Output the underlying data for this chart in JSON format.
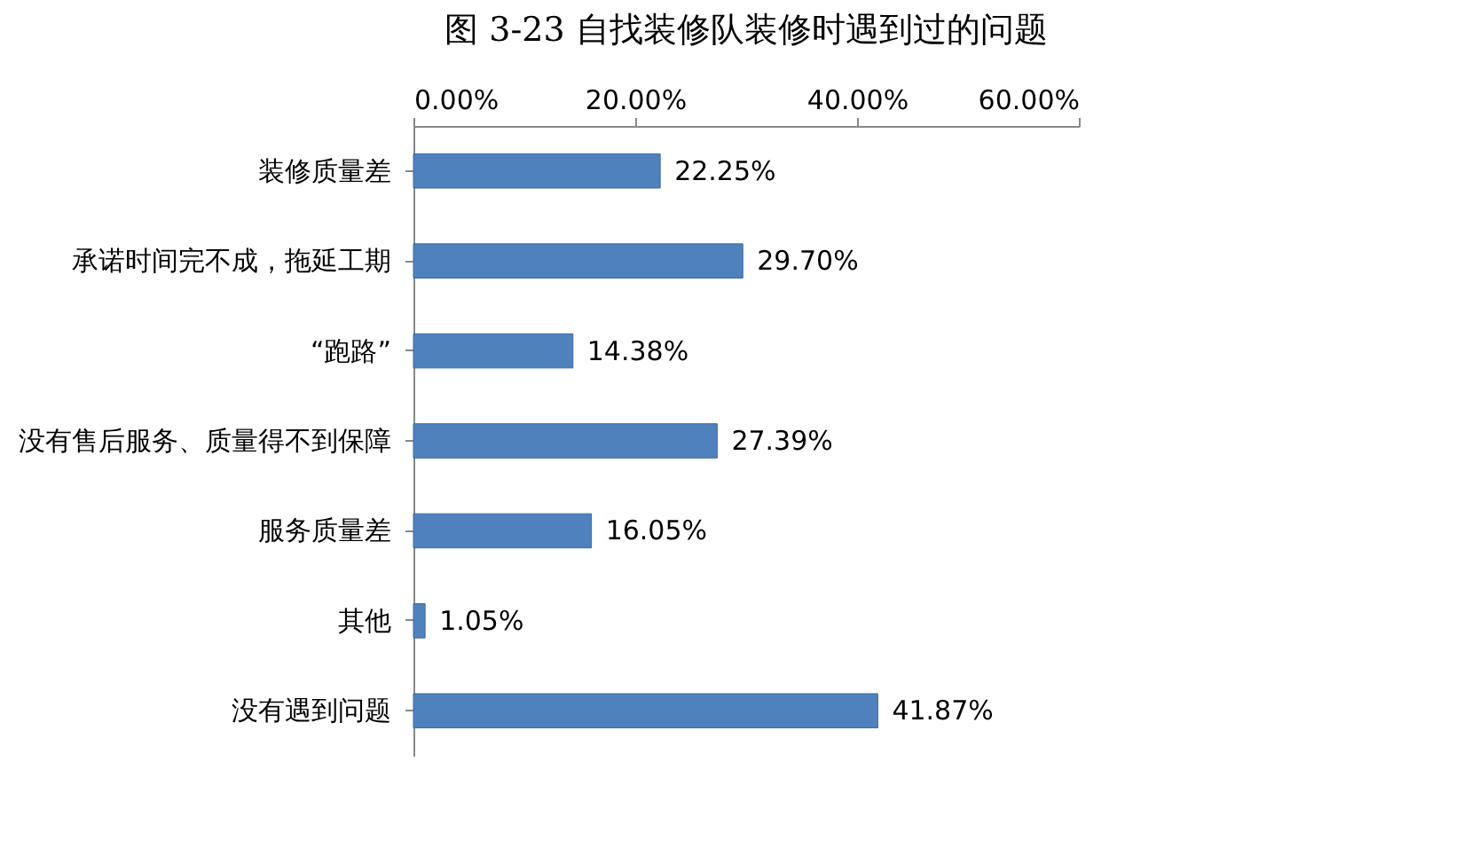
{
  "chart_data": {
    "type": "bar",
    "orientation": "horizontal",
    "title": "图 3-23    自找装修队装修时遇到过的问题",
    "categories": [
      "装修质量差",
      "承诺时间完不成，拖延工期",
      "“跑路”",
      "没有售后服务、质量得不到保障",
      "服务质量差",
      "其他",
      "没有遇到问题"
    ],
    "values": [
      22.25,
      29.7,
      14.38,
      27.39,
      16.05,
      1.05,
      41.87
    ],
    "value_labels": [
      "22.25%",
      "29.70%",
      "14.38%",
      "27.39%",
      "16.05%",
      "1.05%",
      "41.87%"
    ],
    "color": "#4f81bd",
    "xlim": [
      0,
      60
    ],
    "xticks": [
      {
        "value": 0,
        "label": "0.00%"
      },
      {
        "value": 20,
        "label": "20.00%"
      },
      {
        "value": 40,
        "label": "40.00%"
      },
      {
        "value": 60,
        "label": "60.00%"
      }
    ],
    "grid": false
  }
}
